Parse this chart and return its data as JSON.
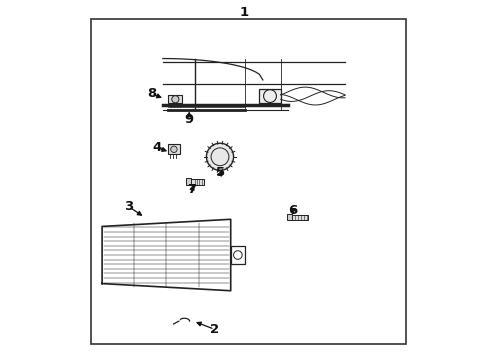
{
  "background_color": "#ffffff",
  "border_color": "#333333",
  "border_lw": 1.2,
  "line_color": "#222222",
  "text_color": "#111111",
  "label_fontsize": 9.5,
  "label_fontweight": "bold"
}
